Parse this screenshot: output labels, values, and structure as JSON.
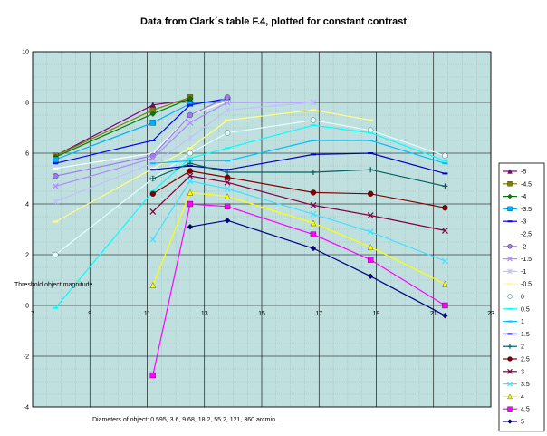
{
  "chart_data": {
    "type": "line",
    "title": "Data from Clark´s table F.4, plotted for constant contrast",
    "ylabel": "Threshold object magnitude",
    "xlabel": "Diameters of object: 0.595, 3.6, 9.68, 18.2, 55.2, 121, 360 arcmin.",
    "xlim": [
      7,
      23
    ],
    "ylim": [
      -4,
      10
    ],
    "x_ticks": [
      7,
      9,
      11,
      13,
      15,
      17,
      19,
      21,
      23
    ],
    "x_tick_labels": [
      "7",
      "9",
      "11",
      "13",
      "15",
      "17",
      "19",
      "21",
      "23"
    ],
    "y_ticks": [
      -4,
      -2,
      0,
      2,
      4,
      6,
      8,
      10
    ],
    "y_tick_labels": [
      "-4",
      "-2",
      "0",
      "2",
      "4",
      "6",
      "8",
      "10"
    ],
    "grid": true,
    "legend_position": "right",
    "plot_background": "#c0e0e0",
    "series": [
      {
        "name": "-5",
        "color": "#800080",
        "marker": "triangle",
        "x": [
          7.8,
          11.2,
          12.5
        ],
        "y": [
          5.9,
          7.9,
          8.1
        ]
      },
      {
        "name": "-4.5",
        "color": "#808000",
        "marker": "square",
        "x": [
          7.8,
          11.2,
          12.5
        ],
        "y": [
          5.9,
          7.7,
          8.2
        ]
      },
      {
        "name": "-4",
        "color": "#008000",
        "marker": "diamond",
        "x": [
          7.8,
          11.2,
          12.5
        ],
        "y": [
          5.85,
          7.55,
          8.15
        ]
      },
      {
        "name": "-3.5",
        "color": "#00b0ff",
        "marker": "square",
        "x": [
          7.8,
          11.2,
          12.5,
          13.8
        ],
        "y": [
          5.75,
          7.2,
          7.95,
          8.1
        ]
      },
      {
        "name": "-3",
        "color": "#0000ff",
        "marker": "dash",
        "x": [
          7.8,
          11.2,
          12.5,
          13.8
        ],
        "y": [
          5.6,
          6.5,
          7.9,
          8.15
        ]
      },
      {
        "name": "-2.5",
        "color": "#ffffff",
        "marker": "dash",
        "x": [
          7.8,
          11.2,
          12.5,
          13.8
        ],
        "y": [
          5.4,
          6.0,
          7.5,
          8.05
        ]
      },
      {
        "name": "-2",
        "color": "#a078f0",
        "marker": "circle",
        "x": [
          7.8,
          11.2,
          12.5,
          13.8
        ],
        "y": [
          5.1,
          5.9,
          7.5,
          8.2
        ]
      },
      {
        "name": "-1.5",
        "color": "#b088ff",
        "marker": "x",
        "x": [
          7.8,
          11.2,
          12.5,
          13.8,
          16.8
        ],
        "y": [
          4.7,
          5.8,
          7.2,
          8.0,
          8.0
        ]
      },
      {
        "name": "-1",
        "color": "#c0c0ff",
        "marker": "star",
        "x": [
          7.8,
          11.2,
          12.5,
          13.8,
          16.8
        ],
        "y": [
          4.1,
          5.6,
          6.6,
          7.7,
          8.0
        ]
      },
      {
        "name": "-0.5",
        "color": "#ffff80",
        "marker": "dash",
        "x": [
          7.8,
          11.2,
          12.5,
          13.8,
          16.8,
          18.8
        ],
        "y": [
          3.3,
          5.4,
          6.2,
          7.3,
          7.7,
          7.3
        ]
      },
      {
        "name": "0",
        "color": "#e0ffff",
        "marker": "circle",
        "x": [
          7.8,
          11.2,
          12.5,
          13.8,
          16.8,
          18.8,
          21.4
        ],
        "y": [
          2.0,
          5.0,
          6.0,
          6.8,
          7.3,
          6.9,
          5.9
        ]
      },
      {
        "name": "0.5",
        "color": "#00ffff",
        "marker": "dash",
        "x": [
          7.8,
          11.2,
          12.5,
          13.8,
          16.8,
          18.8,
          21.4
        ],
        "y": [
          -0.1,
          4.5,
          5.8,
          6.2,
          7.1,
          6.8,
          5.7
        ]
      },
      {
        "name": "1",
        "color": "#00c0ff",
        "marker": "dash",
        "x": [
          11.2,
          12.5,
          13.8,
          16.8,
          18.8,
          21.4
        ],
        "y": [
          5.6,
          5.7,
          5.7,
          6.5,
          6.5,
          5.6
        ]
      },
      {
        "name": "1.5",
        "color": "#0000c0",
        "marker": "dash",
        "x": [
          11.2,
          12.5,
          13.8,
          16.8,
          18.8,
          21.4
        ],
        "y": [
          5.35,
          5.5,
          5.35,
          5.95,
          6.0,
          5.2
        ]
      },
      {
        "name": "2",
        "color": "#006060",
        "marker": "plus",
        "x": [
          11.2,
          12.5,
          13.8,
          16.8,
          18.8,
          21.4
        ],
        "y": [
          5.0,
          5.6,
          5.25,
          5.25,
          5.35,
          4.7
        ]
      },
      {
        "name": "2.5",
        "color": "#800000",
        "marker": "circle",
        "x": [
          11.2,
          12.5,
          13.8,
          16.8,
          18.8,
          21.4
        ],
        "y": [
          4.4,
          5.3,
          5.05,
          4.45,
          4.4,
          3.85
        ]
      },
      {
        "name": "3",
        "color": "#800040",
        "marker": "x",
        "x": [
          11.2,
          12.5,
          13.8,
          16.8,
          18.8,
          21.4
        ],
        "y": [
          3.7,
          5.1,
          4.85,
          3.95,
          3.55,
          2.95
        ]
      },
      {
        "name": "3.5",
        "color": "#40e0ff",
        "marker": "x",
        "x": [
          11.2,
          12.5,
          13.8,
          16.8,
          18.8,
          21.4
        ],
        "y": [
          2.6,
          4.9,
          4.6,
          3.6,
          2.9,
          1.75
        ]
      },
      {
        "name": "4",
        "color": "#ffff00",
        "marker": "triangle",
        "x": [
          11.2,
          12.5,
          13.8,
          16.8,
          18.8,
          21.4
        ],
        "y": [
          0.8,
          4.45,
          4.3,
          3.25,
          2.3,
          0.85
        ]
      },
      {
        "name": "4.5",
        "color": "#ff00ff",
        "marker": "square",
        "x": [
          11.2,
          12.5,
          13.8,
          16.8,
          18.8,
          21.4
        ],
        "y": [
          -2.75,
          4.0,
          3.9,
          2.8,
          1.8,
          0.0
        ]
      },
      {
        "name": "5",
        "color": "#000080",
        "marker": "diamond",
        "x": [
          12.5,
          13.8,
          16.8,
          18.8,
          21.4
        ],
        "y": [
          3.1,
          3.35,
          2.25,
          1.15,
          -0.4
        ]
      }
    ]
  }
}
